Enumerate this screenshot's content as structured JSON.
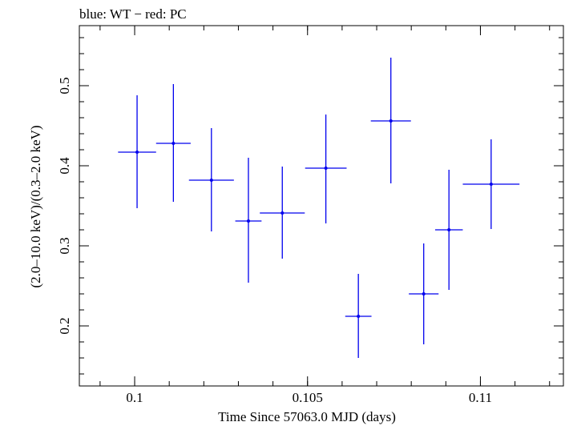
{
  "chart_data": {
    "type": "scatter",
    "title": "blue: WT − red: PC",
    "xlabel": "Time Since 57063.0 MJD (days)",
    "ylabel": "(2.0–10.0 keV)/(0.3–2.0 keV)",
    "xlim": [
      0.0984,
      0.1124
    ],
    "ylim": [
      0.125,
      0.575
    ],
    "xticks": {
      "major": [
        0.1,
        0.105,
        0.11
      ],
      "labels": [
        "0.1",
        "0.105",
        "0.11"
      ],
      "minor_step": 0.001
    },
    "yticks": {
      "major": [
        0.2,
        0.3,
        0.4,
        0.5
      ],
      "labels": [
        "0.2",
        "0.3",
        "0.4",
        "0.5"
      ],
      "minor_step": 0.02
    },
    "grid": false,
    "series": [
      {
        "color": "#0000ee",
        "points": [
          {
            "x": 0.10007,
            "y": 0.417,
            "xerr": 0.00055,
            "ylo": 0.347,
            "yhi": 0.488
          },
          {
            "x": 0.10112,
            "y": 0.428,
            "xerr": 0.0005,
            "ylo": 0.355,
            "yhi": 0.502
          },
          {
            "x": 0.10222,
            "y": 0.382,
            "xerr": 0.00065,
            "ylo": 0.318,
            "yhi": 0.447
          },
          {
            "x": 0.10329,
            "y": 0.331,
            "xerr": 0.00038,
            "ylo": 0.254,
            "yhi": 0.41
          },
          {
            "x": 0.10427,
            "y": 0.341,
            "xerr": 0.00065,
            "ylo": 0.284,
            "yhi": 0.399
          },
          {
            "x": 0.10553,
            "y": 0.397,
            "xerr": 0.0006,
            "ylo": 0.328,
            "yhi": 0.464
          },
          {
            "x": 0.10647,
            "y": 0.212,
            "xerr": 0.00038,
            "ylo": 0.16,
            "yhi": 0.265
          },
          {
            "x": 0.10741,
            "y": 0.456,
            "xerr": 0.00058,
            "ylo": 0.378,
            "yhi": 0.535
          },
          {
            "x": 0.10836,
            "y": 0.24,
            "xerr": 0.00043,
            "ylo": 0.177,
            "yhi": 0.303
          },
          {
            "x": 0.10909,
            "y": 0.32,
            "xerr": 0.0004,
            "ylo": 0.245,
            "yhi": 0.395
          },
          {
            "x": 0.11031,
            "y": 0.377,
            "xerr": 0.00082,
            "ylo": 0.321,
            "yhi": 0.433
          }
        ]
      }
    ]
  }
}
